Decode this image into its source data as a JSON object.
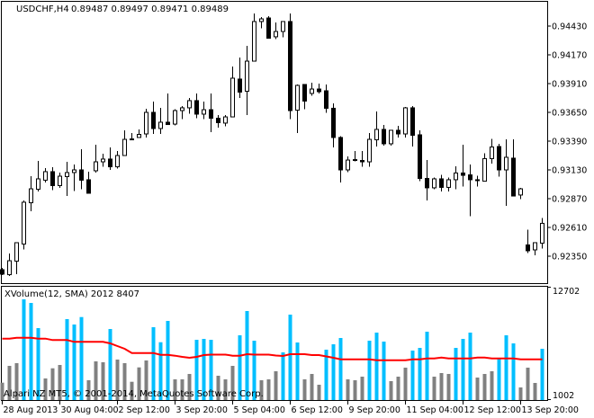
{
  "header": {
    "symbol": "USDCHF,H4",
    "ohlc": "0.89487 0.89497 0.89471 0.89489"
  },
  "indicator": {
    "label": "XVolume(12, SMA) 2012 8407",
    "scale_max_label": "12702",
    "scale_min_label": "1002"
  },
  "copyright": "Alpari NZ MT5, © 2001-2014, MetaQuotes Software Corp.",
  "colors": {
    "background": "#ffffff",
    "bull_body": "#ffffff",
    "bear_body": "#000000",
    "volume_high": "#00bfff",
    "volume_low": "#808080",
    "sma_line": "#ff0000"
  },
  "time_labels": [
    "28 Aug 2013",
    "30 Aug 04:00",
    "2 Sep 12:00",
    "3 Sep 20:00",
    "5 Sep 04:00",
    "6 Sep 12:00",
    "9 Sep 20:00",
    "11 Sep 04:00",
    "12 Sep 12:00",
    "13 Sep 20:00"
  ],
  "price_labels": [
    "0.94430",
    "0.94170",
    "0.93910",
    "0.93650",
    "0.93390",
    "0.93130",
    "0.92870",
    "0.92610",
    "0.92350"
  ],
  "chart_data": [
    {
      "type": "candlestick",
      "title": "USDCHF,H4",
      "ylim": [
        0.9212,
        0.9458
      ],
      "yticks": [
        0.9443,
        0.9417,
        0.9391,
        0.9365,
        0.9339,
        0.9313,
        0.9287,
        0.9261,
        0.9235
      ],
      "ohlc": [
        [
          0.92228,
          0.92244,
          0.92179,
          0.92188
        ],
        [
          0.92183,
          0.92374,
          0.92171,
          0.92309
        ],
        [
          0.92305,
          0.92472,
          0.92188,
          0.92472
        ],
        [
          0.9246,
          0.92854,
          0.92411,
          0.92838
        ],
        [
          0.92833,
          0.93073,
          0.92756,
          0.92959
        ],
        [
          0.92955,
          0.93211,
          0.92935,
          0.93049
        ],
        [
          0.93037,
          0.93146,
          0.93016,
          0.93114
        ],
        [
          0.93114,
          0.93154,
          0.92947,
          0.92988
        ],
        [
          0.92988,
          0.93106,
          0.92968,
          0.93073
        ],
        [
          0.93069,
          0.93203,
          0.92894,
          0.93106
        ],
        [
          0.93106,
          0.93179,
          0.92939,
          0.9313
        ],
        [
          0.9313,
          0.93317,
          0.92955,
          0.93037
        ],
        [
          0.93041,
          0.93114,
          0.92919,
          0.92919
        ],
        [
          0.93122,
          0.93358,
          0.93106,
          0.93203
        ],
        [
          0.93203,
          0.93276,
          0.93158,
          0.93228
        ],
        [
          0.93228,
          0.93333,
          0.9313,
          0.93158
        ],
        [
          0.93158,
          0.93301,
          0.93142,
          0.9326
        ],
        [
          0.9326,
          0.93488,
          0.9326,
          0.93406
        ],
        [
          0.9341,
          0.93463,
          0.93398,
          0.93402
        ],
        [
          0.93423,
          0.93496,
          0.93423,
          0.93451
        ],
        [
          0.93455,
          0.93683,
          0.93423,
          0.9365
        ],
        [
          0.9365,
          0.93748,
          0.93455,
          0.93504
        ],
        [
          0.93504,
          0.93691,
          0.93455,
          0.93561
        ],
        [
          0.93561,
          0.93821,
          0.9354,
          0.9354
        ],
        [
          0.93544,
          0.93678,
          0.93532,
          0.93666
        ],
        [
          0.93666,
          0.93707,
          0.93589,
          0.93691
        ],
        [
          0.93691,
          0.9378,
          0.93638,
          0.93756
        ],
        [
          0.93756,
          0.93821,
          0.93597,
          0.93634
        ],
        [
          0.93634,
          0.93748,
          0.93589,
          0.93674
        ],
        [
          0.93674,
          0.93821,
          0.93471,
          0.93597
        ],
        [
          0.93597,
          0.93626,
          0.93512,
          0.93557
        ],
        [
          0.93553,
          0.93626,
          0.93524,
          0.93609
        ],
        [
          0.93609,
          0.94064,
          0.93605,
          0.93959
        ],
        [
          0.93951,
          0.94146,
          0.9378,
          0.93833
        ],
        [
          0.93841,
          0.94251,
          0.93626,
          0.94113
        ],
        [
          0.94113,
          0.94544,
          0.94113,
          0.94471
        ],
        [
          0.94471,
          0.94511,
          0.9441,
          0.94495
        ],
        [
          0.94503,
          0.94519,
          0.9432,
          0.9432
        ],
        [
          0.94333,
          0.94463,
          0.94312,
          0.94381
        ],
        [
          0.94381,
          0.94471,
          0.94328,
          0.94471
        ],
        [
          0.94471,
          0.94544,
          0.93589,
          0.93666
        ],
        [
          0.9367,
          0.93902,
          0.93463,
          0.93894
        ],
        [
          0.93902,
          0.93902,
          0.93678,
          0.93752
        ],
        [
          0.93821,
          0.93918,
          0.938,
          0.93861
        ],
        [
          0.93861,
          0.9391,
          0.93821,
          0.93837
        ],
        [
          0.93845,
          0.93902,
          0.93646,
          0.93687
        ],
        [
          0.93687,
          0.93731,
          0.93333,
          0.93423
        ],
        [
          0.93423,
          0.93435,
          0.93016,
          0.9313
        ],
        [
          0.9313,
          0.93252,
          0.9311,
          0.93219
        ],
        [
          0.93223,
          0.93301,
          0.93207,
          0.93215
        ],
        [
          0.93215,
          0.93301,
          0.93158,
          0.93203
        ],
        [
          0.93203,
          0.93463,
          0.93158,
          0.93406
        ],
        [
          0.93402,
          0.93658,
          0.93341,
          0.93496
        ],
        [
          0.93496,
          0.93536,
          0.93349,
          0.93366
        ],
        [
          0.93366,
          0.93488,
          0.93349,
          0.93488
        ],
        [
          0.93488,
          0.93528,
          0.93423,
          0.93455
        ],
        [
          0.93455,
          0.93699,
          0.93423,
          0.93691
        ],
        [
          0.93691,
          0.93707,
          0.93341,
          0.93443
        ],
        [
          0.93447,
          0.93488,
          0.93028,
          0.93053
        ],
        [
          0.93053,
          0.93219,
          0.92854,
          0.92968
        ],
        [
          0.92968,
          0.93061,
          0.92955,
          0.93049
        ],
        [
          0.93049,
          0.93085,
          0.92935,
          0.92972
        ],
        [
          0.92972,
          0.93061,
          0.92935,
          0.93041
        ],
        [
          0.93041,
          0.93163,
          0.92955,
          0.93102
        ],
        [
          0.93102,
          0.93358,
          0.9298,
          0.93081
        ],
        [
          0.93085,
          0.93179,
          0.92712,
          0.93041
        ],
        [
          0.93041,
          0.93077,
          0.9298,
          0.93039
        ],
        [
          0.93028,
          0.9328,
          0.93024,
          0.93232
        ],
        [
          0.93232,
          0.9341,
          0.93187,
          0.93337
        ],
        [
          0.93341,
          0.93366,
          0.93069,
          0.9313
        ],
        [
          0.9313,
          0.93406,
          0.92805,
          0.93244
        ],
        [
          0.93236,
          0.93406,
          0.9289,
          0.92894
        ],
        [
          0.92903,
          0.92968,
          0.92866,
          0.92959
        ],
        [
          0.92452,
          0.9259,
          0.92378,
          0.92399
        ],
        [
          0.92407,
          0.92472,
          0.92358,
          0.92472
        ],
        [
          0.92468,
          0.92695,
          0.92419,
          0.92647
        ]
      ]
    },
    {
      "type": "bar",
      "title": "XVolume(12, SMA) 2012 8407",
      "ylim": [
        1002,
        12702
      ],
      "values": [
        2715,
        4465,
        4746,
        11392,
        11017,
        8396,
        3155,
        4212,
        4559,
        9332,
        8771,
        9548,
        2968,
        4933,
        4840,
        8303,
        5120,
        4746,
        2808,
        4306,
        5027,
        8490,
        6927,
        9145,
        3061,
        3061,
        3623,
        7180,
        7273,
        7180,
        3436,
        3061,
        4465,
        7648,
        10175,
        7086,
        2968,
        3061,
        3904,
        5869,
        9800,
        6899,
        3061,
        3623,
        2500,
        6150,
        6712,
        7367,
        3061,
        2968,
        3342,
        7086,
        7928,
        6992,
        2874,
        3342,
        4278,
        6056,
        6337,
        8022,
        3342,
        3716,
        3623,
        6337,
        7273,
        7928,
        3248,
        3623,
        3904,
        5214,
        7648,
        6805,
        2219,
        4278,
        2687,
        6244
      ],
      "high_flags": [
        0,
        0,
        0,
        1,
        1,
        1,
        0,
        0,
        0,
        1,
        1,
        1,
        0,
        0,
        0,
        1,
        0,
        0,
        0,
        0,
        0,
        1,
        1,
        1,
        0,
        0,
        0,
        1,
        1,
        1,
        0,
        0,
        0,
        1,
        1,
        1,
        0,
        0,
        0,
        1,
        1,
        1,
        0,
        0,
        0,
        1,
        1,
        1,
        0,
        0,
        0,
        1,
        1,
        1,
        0,
        0,
        0,
        1,
        1,
        1,
        0,
        0,
        0,
        1,
        1,
        1,
        0,
        0,
        0,
        1,
        1,
        1,
        0,
        0,
        0,
        1
      ],
      "sma": [
        7301,
        7301,
        7395,
        7395,
        7395,
        7301,
        7301,
        7152,
        7152,
        7152,
        6964,
        6964,
        6964,
        6964,
        6964,
        6805,
        6524,
        6244,
        5804,
        5804,
        5804,
        5804,
        5616,
        5616,
        5523,
        5401,
        5308,
        5401,
        5588,
        5635,
        5635,
        5635,
        5523,
        5523,
        5682,
        5635,
        5635,
        5635,
        5542,
        5495,
        5682,
        5682,
        5682,
        5588,
        5588,
        5448,
        5308,
        5148,
        5148,
        5148,
        5148,
        5148,
        5055,
        5055,
        5055,
        5055,
        5055,
        5148,
        5148,
        5242,
        5242,
        5336,
        5242,
        5242,
        5242,
        5242,
        5336,
        5336,
        5242,
        5242,
        5242,
        5242,
        5148,
        5148,
        5148,
        5148
      ]
    }
  ]
}
